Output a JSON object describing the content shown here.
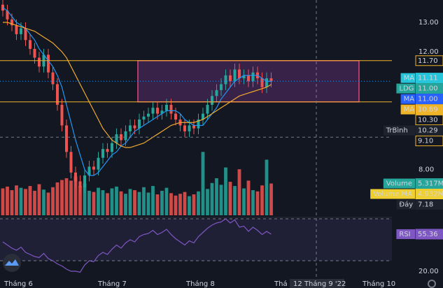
{
  "chart_data": {
    "type": "candlestick",
    "ylim": [
      6.4,
      13.76
    ],
    "yticks": [
      {
        "value": 13,
        "label": "13.00"
      },
      {
        "value": 12,
        "label": "12.00"
      },
      {
        "value": 8,
        "label": "8.00"
      }
    ],
    "open": [
      13.6,
      13.4,
      13.1,
      12.9,
      12.6,
      12.8,
      12.4,
      12.1,
      11.8,
      11.5,
      11.9,
      11.3,
      10.9,
      10.2,
      9.5,
      8.6,
      7.9,
      7.6,
      7.4,
      7.8,
      8.1,
      8.0,
      8.4,
      8.7,
      8.6,
      8.9,
      9.2,
      9.0,
      9.3,
      9.5,
      9.4,
      9.7,
      9.8,
      9.9,
      10.1,
      9.9,
      10.0,
      10.2,
      9.9,
      9.7,
      9.5,
      9.3,
      9.5,
      9.4,
      9.7,
      9.9,
      10.2,
      10.5,
      10.7,
      10.9,
      11.2,
      11.0,
      11.4,
      11.1,
      11.2,
      11.0,
      11.3,
      11.1,
      10.8,
      11.1
    ],
    "high": [
      13.8,
      13.6,
      13.3,
      13.1,
      13.0,
      13.0,
      12.6,
      12.3,
      12.0,
      12.1,
      12.1,
      11.5,
      11.1,
      10.4,
      9.7,
      8.8,
      8.1,
      7.8,
      8.0,
      8.3,
      8.3,
      8.6,
      8.9,
      8.9,
      9.1,
      9.4,
      9.4,
      9.5,
      9.7,
      9.7,
      9.9,
      10.0,
      10.1,
      10.3,
      10.3,
      10.2,
      10.4,
      10.4,
      10.1,
      9.9,
      9.7,
      9.7,
      9.7,
      9.9,
      10.1,
      10.4,
      10.7,
      10.9,
      11.1,
      11.4,
      11.4,
      11.6,
      11.6,
      11.4,
      11.4,
      11.5,
      11.5,
      11.3,
      11.3,
      11.3
    ],
    "low": [
      13.2,
      12.9,
      12.7,
      12.4,
      12.4,
      12.2,
      11.9,
      11.6,
      11.3,
      11.3,
      11.1,
      10.7,
      10.0,
      9.3,
      8.4,
      7.7,
      7.4,
      7.18,
      7.2,
      7.6,
      7.8,
      7.8,
      8.2,
      8.4,
      8.4,
      8.7,
      8.8,
      8.8,
      9.1,
      9.2,
      9.2,
      9.5,
      9.6,
      9.7,
      9.7,
      9.7,
      9.8,
      9.7,
      9.5,
      9.3,
      9.1,
      9.1,
      9.2,
      9.2,
      9.5,
      9.7,
      10.0,
      10.3,
      10.5,
      10.7,
      10.8,
      10.8,
      10.9,
      10.9,
      10.8,
      10.8,
      10.9,
      10.6,
      10.6,
      10.8
    ],
    "close": [
      13.4,
      13.1,
      12.9,
      12.6,
      12.8,
      12.4,
      12.1,
      11.8,
      11.5,
      11.9,
      11.3,
      10.9,
      10.2,
      9.5,
      8.6,
      7.9,
      7.6,
      7.4,
      7.8,
      8.1,
      8.0,
      8.4,
      8.7,
      8.6,
      8.9,
      9.2,
      9.0,
      9.3,
      9.5,
      9.4,
      9.7,
      9.8,
      9.9,
      10.1,
      9.9,
      10.0,
      10.2,
      9.9,
      9.7,
      9.5,
      9.3,
      9.5,
      9.4,
      9.7,
      9.9,
      10.2,
      10.5,
      10.7,
      10.9,
      11.2,
      11.0,
      11.4,
      11.1,
      11.2,
      11.0,
      11.3,
      11.1,
      10.8,
      11.1,
      11.0
    ],
    "up_color": "#26a69a",
    "down_color": "#ef5350",
    "series": [
      {
        "name": "MA",
        "color": "#2196f3",
        "values": [
          13.5,
          13.4,
          13.2,
          13.0,
          12.9,
          12.8,
          12.6,
          12.4,
          12.1,
          11.9,
          11.7,
          11.5,
          11.2,
          10.8,
          10.2,
          9.6,
          9.0,
          8.5,
          8.0,
          7.8,
          7.8,
          7.9,
          8.1,
          8.3,
          8.5,
          8.6,
          8.8,
          8.9,
          9.1,
          9.3,
          9.4,
          9.5,
          9.6,
          9.7,
          9.8,
          9.9,
          10.0,
          10.0,
          10.0,
          9.9,
          9.7,
          9.6,
          9.5,
          9.5,
          9.5,
          9.7,
          9.9,
          10.1,
          10.4,
          10.6,
          10.8,
          11.0,
          11.1,
          11.2,
          11.2,
          11.2,
          11.2,
          11.1,
          11.0,
          11.0
        ]
      },
      {
        "name": "MA",
        "color": "#f0a830",
        "values": [
          13.0,
          13.0,
          12.95,
          12.9,
          12.85,
          12.8,
          12.75,
          12.7,
          12.6,
          12.5,
          12.4,
          12.3,
          12.15,
          12.0,
          11.8,
          11.5,
          11.2,
          10.9,
          10.6,
          10.3,
          10.0,
          9.7,
          9.4,
          9.2,
          9.0,
          8.9,
          8.8,
          8.75,
          8.75,
          8.8,
          8.85,
          8.9,
          9.0,
          9.1,
          9.2,
          9.3,
          9.4,
          9.5,
          9.55,
          9.6,
          9.6,
          9.6,
          9.6,
          9.65,
          9.7,
          9.8,
          9.9,
          10.0,
          10.1,
          10.2,
          10.3,
          10.4,
          10.5,
          10.55,
          10.6,
          10.65,
          10.7,
          10.75,
          10.8,
          10.89
        ]
      }
    ],
    "box_y": [
      10.3,
      11.7
    ],
    "price_badges": [
      {
        "value": 11.7,
        "label": "11.70",
        "color": "#131722",
        "line": "solid"
      },
      {
        "name": "MA",
        "value": 11.11,
        "label": "11.11",
        "color": "#26c6da"
      },
      {
        "name": "LDG",
        "value": 11.0,
        "label": "11.00",
        "color": "#26a69a",
        "line": "dotted"
      },
      {
        "name": "MA",
        "value": 11.0,
        "label": "11.00",
        "color": "#2962ff"
      },
      {
        "name": "MA",
        "value": 10.89,
        "label": "10.89",
        "color": "#f0b429"
      },
      {
        "value": 10.3,
        "label": "10.30",
        "color": "#131722",
        "line": "solid"
      },
      {
        "name": "TrBình",
        "value": 10.29,
        "label": "10.29",
        "color": "#1e222d"
      },
      {
        "value": 9.1,
        "label": "9.10",
        "color": "#131722",
        "line": "dashed"
      }
    ],
    "volume": [
      4.5,
      4.8,
      4.2,
      5.0,
      4.6,
      4.4,
      4.9,
      4.1,
      5.2,
      4.3,
      3.8,
      4.7,
      5.5,
      5.9,
      6.2,
      5.8,
      6.5,
      4.9,
      5.3,
      4.1,
      3.9,
      4.6,
      4.2,
      3.7,
      4.5,
      4.8,
      4.0,
      3.6,
      4.4,
      4.2,
      3.9,
      4.7,
      3.8,
      4.9,
      3.5,
      4.1,
      4.6,
      3.7,
      3.3,
      3.6,
      3.9,
      3.2,
      3.5,
      4.0,
      10.6,
      4.4,
      5.4,
      6.2,
      5.1,
      8.0,
      5.6,
      4.9,
      7.7,
      4.5,
      5.8,
      4.2,
      4.0,
      5.0,
      9.3,
      5.317
    ],
    "volume_ylim": [
      0,
      36
    ],
    "volume_badges": [
      {
        "name": "Volume",
        "value": 5.317,
        "label": "5.317M",
        "color": "#26a69a"
      },
      {
        "name": "Volume MA",
        "value": 4.932,
        "label": "4.932M",
        "color": "#f0d030"
      },
      {
        "name": "Đáy",
        "value": 7.18,
        "label": "7.18",
        "color": "#1e222d"
      }
    ],
    "rsi": [
      48,
      45,
      42,
      40,
      43,
      38,
      36,
      34,
      33,
      37,
      32,
      30,
      27,
      25,
      22,
      20,
      20,
      19,
      26,
      30,
      29,
      35,
      38,
      36,
      41,
      45,
      42,
      47,
      50,
      48,
      53,
      55,
      56,
      59,
      55,
      57,
      60,
      55,
      51,
      48,
      45,
      49,
      47,
      53,
      57,
      61,
      64,
      66,
      67,
      70,
      66,
      69,
      62,
      63,
      58,
      62,
      59,
      55,
      58,
      55.36
    ],
    "rsi_color": "#7e57c2",
    "rsi_ylim": [
      12,
      70
    ],
    "rsi_bands": [
      30,
      70
    ],
    "rsi_yticks": [
      {
        "value": 20,
        "label": "20.00"
      }
    ],
    "rsi_badge": {
      "name": "RSI",
      "value": 55.36,
      "label": "55.36"
    },
    "x_labels": [
      "Tháng 6",
      "Tháng 7",
      "Tháng 8",
      "Thá",
      "Tháng 10"
    ],
    "crosshair_label": "12 Tháng 9 '22"
  }
}
